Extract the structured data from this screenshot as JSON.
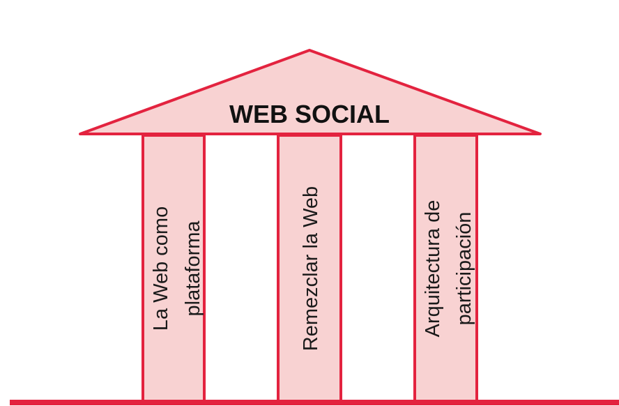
{
  "title": "WEB SOCIAL",
  "pillars": [
    {
      "line1": "La Web como",
      "line2": "plataforma"
    },
    {
      "line1": "Remezclar la Web",
      "line2": ""
    },
    {
      "line1": "Arquitectura de",
      "line2": "participación"
    }
  ],
  "colors": {
    "stroke": "#e3233f",
    "fill": "#f8d2d2",
    "text": "#111111"
  }
}
